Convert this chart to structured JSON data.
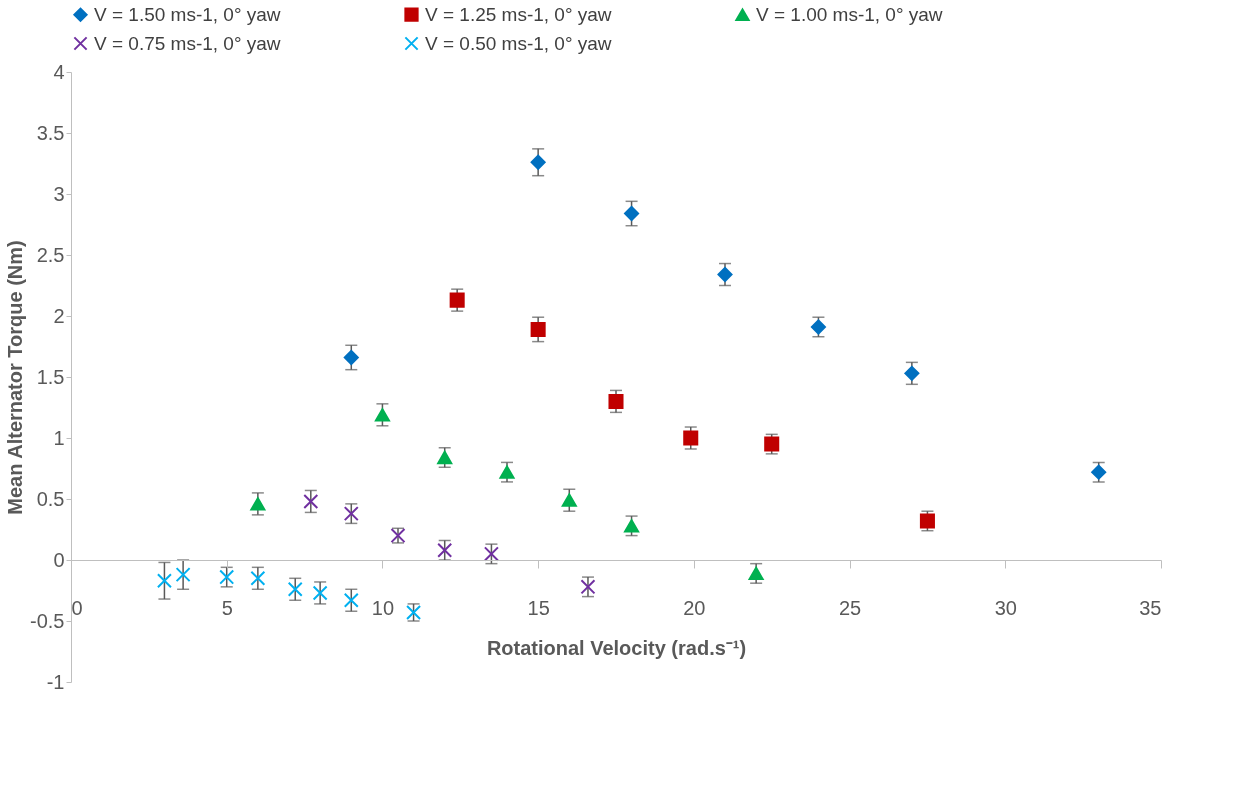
{
  "chart_data": {
    "type": "scatter",
    "xlabel": "Rotational Velocity (rad.s⁻¹)",
    "ylabel": "Mean Alternator Torque (Nm)",
    "xlim": [
      0,
      35
    ],
    "xticks": [
      0,
      5,
      10,
      15,
      20,
      25,
      30,
      35
    ],
    "ylim": [
      -1,
      4
    ],
    "yticks": [
      -1,
      -0.5,
      0,
      0.5,
      1,
      1.5,
      2,
      2.5,
      3,
      3.5,
      4
    ],
    "grid": false,
    "legend": "top",
    "series": [
      {
        "name": "V = 1.50 ms-1, 0° yaw",
        "color": "#0070c0",
        "marker": "diamond",
        "x": [
          9,
          15,
          18,
          21,
          24,
          27,
          33
        ],
        "values": [
          1.66,
          3.26,
          2.84,
          2.34,
          1.91,
          1.53,
          0.72
        ],
        "errors": [
          0.1,
          0.11,
          0.1,
          0.09,
          0.08,
          0.09,
          0.08
        ]
      },
      {
        "name": "V = 1.25 ms-1, 0° yaw",
        "color": "#c00000",
        "marker": "square",
        "x": [
          12.4,
          15,
          17.5,
          19.9,
          22.5,
          27.5
        ],
        "values": [
          2.13,
          1.89,
          1.3,
          1.0,
          0.95,
          0.32
        ],
        "errors": [
          0.09,
          0.1,
          0.09,
          0.09,
          0.08,
          0.08
        ]
      },
      {
        "name": "V = 1.00 ms-1, 0° yaw",
        "color": "#00b050",
        "marker": "triangle",
        "x": [
          6,
          10,
          12,
          14,
          16,
          18,
          22
        ],
        "values": [
          0.46,
          1.19,
          0.84,
          0.72,
          0.49,
          0.28,
          -0.11
        ],
        "errors": [
          0.09,
          0.09,
          0.08,
          0.08,
          0.09,
          0.08,
          0.08
        ]
      },
      {
        "name": "V = 0.75 ms-1, 0° yaw",
        "color": "#7030a0",
        "marker": "cross",
        "x": [
          7.7,
          9,
          10.5,
          12,
          13.5,
          16.6
        ],
        "values": [
          0.48,
          0.38,
          0.2,
          0.08,
          0.05,
          -0.22
        ],
        "errors": [
          0.09,
          0.08,
          0.06,
          0.08,
          0.08,
          0.08
        ]
      },
      {
        "name": "V = 0.50 ms-1, 0° yaw",
        "color": "#00b0f0",
        "marker": "cross",
        "x": [
          3,
          3.6,
          5,
          6,
          7.2,
          8,
          9,
          11
        ],
        "values": [
          -0.17,
          -0.12,
          -0.14,
          -0.15,
          -0.24,
          -0.27,
          -0.33,
          -0.43
        ],
        "errors": [
          0.15,
          0.12,
          0.08,
          0.09,
          0.09,
          0.09,
          0.09,
          0.07
        ]
      }
    ]
  }
}
